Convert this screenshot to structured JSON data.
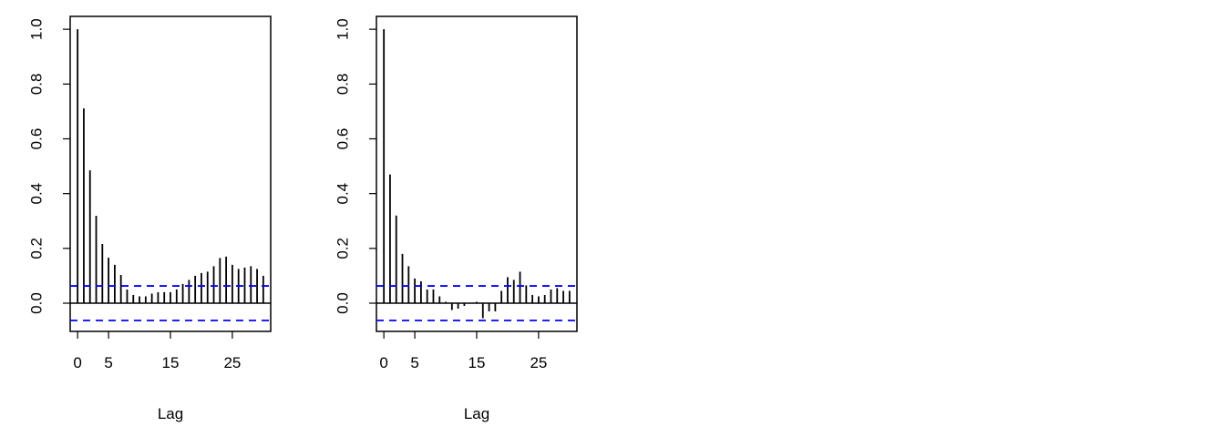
{
  "chart_data": [
    {
      "type": "acf",
      "xlabel": "Lag",
      "x": [
        0,
        1,
        2,
        3,
        4,
        5,
        6,
        7,
        8,
        9,
        10,
        11,
        12,
        13,
        14,
        15,
        16,
        17,
        18,
        19,
        20,
        21,
        22,
        23,
        24,
        25,
        26,
        27,
        28,
        29,
        30
      ],
      "values": [
        1.0,
        0.711,
        0.485,
        0.319,
        0.216,
        0.166,
        0.14,
        0.103,
        0.05,
        0.03,
        0.025,
        0.025,
        0.035,
        0.04,
        0.04,
        0.04,
        0.05,
        0.07,
        0.085,
        0.1,
        0.11,
        0.115,
        0.135,
        0.165,
        0.17,
        0.14,
        0.125,
        0.13,
        0.135,
        0.125,
        0.1
      ],
      "color": "#000000",
      "confidence_bounds": [
        0.063,
        -0.063
      ],
      "bound_color": "#0000ff",
      "xlim": [
        -1.2,
        31.2
      ],
      "ylim": [
        -0.103,
        1.047
      ],
      "xticks": [
        0,
        5,
        15,
        25
      ],
      "yticks": [
        {
          "value": 0,
          "label": "0.0"
        },
        {
          "value": 0.2,
          "label": "0.2"
        },
        {
          "value": 0.4,
          "label": "0.4"
        },
        {
          "value": 0.6,
          "label": "0.6"
        },
        {
          "value": 0.8,
          "label": "0.8"
        },
        {
          "value": 1,
          "label": "1.0"
        }
      ]
    },
    {
      "type": "acf",
      "xlabel": "Lag",
      "x": [
        0,
        1,
        2,
        3,
        4,
        5,
        6,
        7,
        8,
        9,
        10,
        11,
        12,
        13,
        14,
        15,
        16,
        17,
        18,
        19,
        20,
        21,
        22,
        23,
        24,
        25,
        26,
        27,
        28,
        29,
        30
      ],
      "values": [
        1.0,
        0.47,
        0.32,
        0.18,
        0.135,
        0.09,
        0.08,
        0.05,
        0.05,
        0.025,
        0.005,
        -0.025,
        -0.02,
        -0.01,
        0.0,
        0.005,
        -0.055,
        -0.03,
        -0.03,
        0.045,
        0.095,
        0.085,
        0.115,
        0.065,
        0.03,
        0.025,
        0.03,
        0.05,
        0.055,
        0.045,
        0.045
      ],
      "color": "#000000",
      "confidence_bounds": [
        0.063,
        -0.063
      ],
      "bound_color": "#0000ff",
      "xlim": [
        -1.2,
        31.2
      ],
      "ylim": [
        -0.103,
        1.047
      ],
      "xticks": [
        0,
        5,
        15,
        25
      ],
      "yticks": [
        {
          "value": 0,
          "label": "0.0"
        },
        {
          "value": 0.2,
          "label": "0.2"
        },
        {
          "value": 0.4,
          "label": "0.4"
        },
        {
          "value": 0.6,
          "label": "0.6"
        },
        {
          "value": 0.8,
          "label": "0.8"
        },
        {
          "value": 1,
          "label": "1.0"
        }
      ]
    }
  ]
}
